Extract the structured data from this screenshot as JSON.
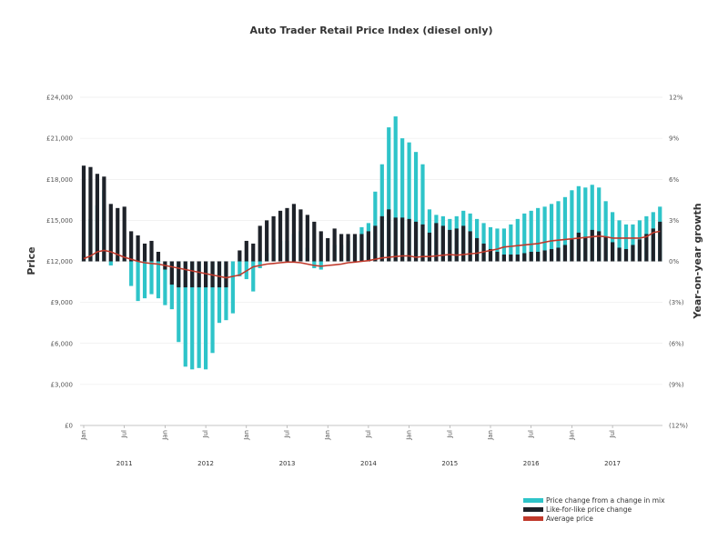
{
  "chart_data": {
    "type": "bar",
    "title": "Auto Trader Retail Price Index (diesel only)",
    "ylabel_left": "Price",
    "ylabel_right": "Year-on-year growth",
    "ylim_left": [
      0,
      24000
    ],
    "ylim_right": [
      -12,
      12
    ],
    "left_ticks": [
      "£0",
      "£3,000",
      "£6,000",
      "£9,000",
      "£12,000",
      "£15,000",
      "£18,000",
      "£21,000",
      "£24,000"
    ],
    "right_ticks": [
      "(12%)",
      "(9%)",
      "(6%)",
      "(3%)",
      "0%",
      "3%",
      "6%",
      "9%",
      "12%"
    ],
    "month_labels": [
      "Jan",
      "Jul",
      "Jan",
      "Jul",
      "Jan",
      "Jul",
      "Jan",
      "Jul",
      "Jan",
      "Jul",
      "Jan",
      "Jul",
      "Jan",
      "Jul"
    ],
    "years": [
      "2011",
      "2012",
      "2013",
      "2014",
      "2015",
      "2016",
      "2017"
    ],
    "x_start": "2011-01",
    "legend": [
      {
        "label": "Price change from a change in mix",
        "color": "#2ec4c9"
      },
      {
        "label": "Like-for-like price change",
        "color": "#1e2229"
      },
      {
        "label": "Average price",
        "color": "#c0392b"
      }
    ],
    "series": [
      {
        "name": "Like-for-like price change",
        "unit": "% year-on-year",
        "values": [
          7.0,
          6.9,
          6.4,
          6.2,
          4.2,
          3.9,
          4.0,
          2.2,
          1.9,
          1.3,
          1.5,
          0.7,
          -0.6,
          -1.7,
          -1.9,
          -1.9,
          -1.9,
          -1.9,
          -1.9,
          -1.9,
          -1.9,
          -1.9,
          0.0,
          0.8,
          1.5,
          1.3,
          2.6,
          3.0,
          3.3,
          3.7,
          3.9,
          4.2,
          3.8,
          3.4,
          2.9,
          2.2,
          1.7,
          2.4,
          2.0,
          2.0,
          2.0,
          2.0,
          2.2,
          2.6,
          3.3,
          3.8,
          3.2,
          3.2,
          3.1,
          2.9,
          2.7,
          2.1,
          2.8,
          2.6,
          2.3,
          2.4,
          2.6,
          2.2,
          1.7,
          1.3,
          0.9,
          0.7,
          0.5,
          0.5,
          0.5,
          0.6,
          0.7,
          0.7,
          0.8,
          0.9,
          1.0,
          1.2,
          1.6,
          2.1,
          1.8,
          2.3,
          2.2,
          1.8,
          1.4,
          1.0,
          0.9,
          1.2,
          1.6,
          2.0,
          2.4,
          2.9
        ],
        "color": "#1e2229"
      },
      {
        "name": "Price change from a change in mix",
        "unit": "% year-on-year",
        "values": [
          -6.5,
          -3.8,
          -2.3,
          -1.0,
          -4.5,
          -3.6,
          -3.9,
          -4.0,
          -4.8,
          -4.0,
          -3.9,
          -3.4,
          -2.6,
          -1.8,
          -4.0,
          -5.8,
          -6.0,
          -5.9,
          -6.0,
          -4.8,
          -2.6,
          -2.4,
          -3.8,
          -1.9,
          -2.8,
          -3.5,
          -3.1,
          -2.4,
          -1.7,
          -2.2,
          -2.4,
          -2.2,
          -1.6,
          -2.4,
          -3.4,
          -2.8,
          -1.7,
          -1.2,
          -0.8,
          -0.5,
          -0.2,
          0.5,
          0.6,
          2.5,
          3.8,
          6.0,
          7.4,
          5.8,
          5.6,
          5.1,
          4.4,
          1.7,
          0.6,
          0.7,
          0.8,
          0.9,
          1.1,
          1.3,
          1.4,
          1.5,
          1.6,
          1.7,
          1.9,
          2.2,
          2.6,
          2.9,
          3.0,
          3.2,
          3.2,
          3.3,
          3.4,
          3.5,
          3.6,
          3.4,
          3.6,
          3.3,
          3.2,
          2.6,
          2.2,
          2.0,
          1.8,
          1.5,
          1.4,
          1.3,
          1.2,
          1.1
        ]
      },
      {
        "name": "Average price",
        "unit": "GBP",
        "values": [
          12200,
          12400,
          12700,
          12800,
          12700,
          12500,
          12300,
          12150,
          12000,
          11900,
          11850,
          11800,
          11700,
          11600,
          11500,
          11400,
          11300,
          11200,
          11100,
          11000,
          10900,
          10800,
          10900,
          11000,
          11300,
          11600,
          11700,
          11800,
          11850,
          11900,
          11950,
          11950,
          11900,
          11800,
          11700,
          11650,
          11700,
          11750,
          11800,
          11900,
          11950,
          12000,
          12050,
          12150,
          12250,
          12300,
          12350,
          12400,
          12400,
          12300,
          12350,
          12350,
          12400,
          12450,
          12500,
          12450,
          12500,
          12550,
          12600,
          12700,
          12800,
          12900,
          13050,
          13100,
          13150,
          13200,
          13250,
          13300,
          13400,
          13500,
          13550,
          13600,
          13650,
          13700,
          13750,
          13800,
          13850,
          13800,
          13700,
          13700,
          13700,
          13700,
          13700,
          13800,
          14100,
          14200
        ]
      }
    ]
  }
}
